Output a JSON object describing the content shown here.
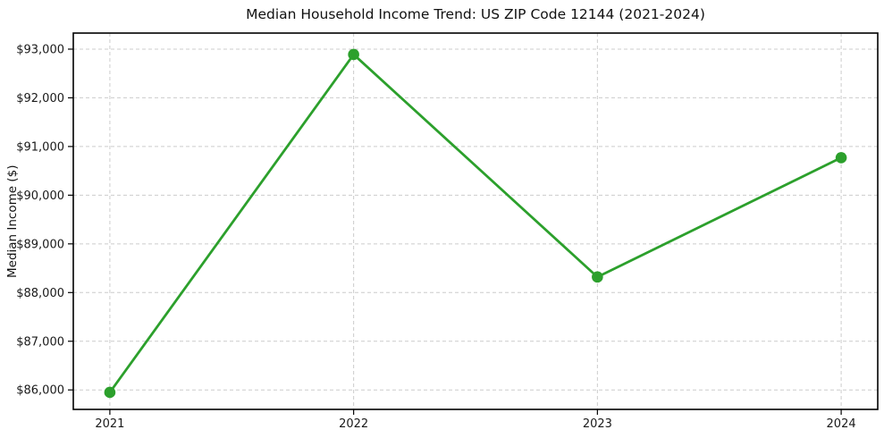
{
  "chart_data": {
    "type": "line",
    "title": "Median Household Income Trend: US ZIP Code 12144 (2021-2024)",
    "xlabel": "",
    "ylabel": "Median Income ($)",
    "x": [
      2021,
      2022,
      2023,
      2024
    ],
    "x_tick_labels": [
      "2021",
      "2022",
      "2023",
      "2024"
    ],
    "series": [
      {
        "name": "Median Household Income",
        "values": [
          85950,
          92890,
          88320,
          90770
        ]
      }
    ],
    "y_ticks": [
      86000,
      87000,
      88000,
      89000,
      90000,
      91000,
      92000,
      93000
    ],
    "y_tick_labels": [
      "$86,000",
      "$87,000",
      "$88,000",
      "$89,000",
      "$90,000",
      "$91,000",
      "$92,000",
      "$93,000"
    ],
    "xlim": [
      2020.85,
      2024.15
    ],
    "ylim": [
      85600,
      93330
    ],
    "grid": true,
    "grid_style": "dashed",
    "legend": "none",
    "line_color": "#2ca02c",
    "marker": "circle",
    "marker_size": 6.3,
    "background_color": "#ffffff",
    "grid_color": "#cccccc",
    "spine_color": "#000000"
  }
}
